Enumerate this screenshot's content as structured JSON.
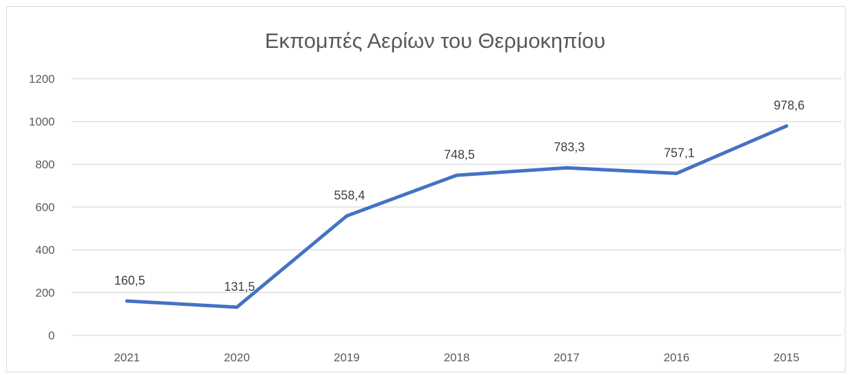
{
  "chart_data": {
    "type": "line",
    "title": "Εκπομπές Αερίων του Θερμοκηπίου",
    "xlabel": "",
    "ylabel": "",
    "categories": [
      "2021",
      "2020",
      "2019",
      "2018",
      "2017",
      "2016",
      "2015"
    ],
    "series": [
      {
        "values": [
          160.5,
          131.5,
          558.4,
          748.5,
          783.3,
          757.1,
          978.6
        ],
        "data_labels": [
          "160,5",
          "131,5",
          "558,4",
          "748,5",
          "783,3",
          "757,1",
          "978,6"
        ],
        "color": "#4472c4"
      }
    ],
    "ylim": [
      0,
      1200
    ],
    "yticks": [
      "0",
      "200",
      "400",
      "600",
      "800",
      "1000",
      "1200"
    ],
    "grid": true,
    "legend": "none"
  }
}
